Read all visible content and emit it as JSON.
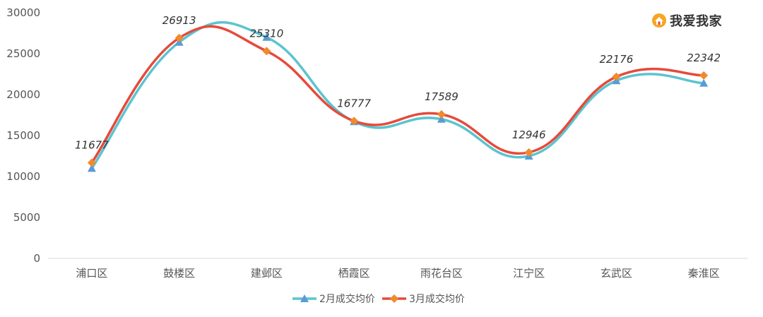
{
  "brand": {
    "name": "我爱我家"
  },
  "chart_data": {
    "type": "line",
    "categories": [
      "浦口区",
      "鼓楼区",
      "建邺区",
      "栖霞区",
      "雨花台区",
      "江宁区",
      "玄武区",
      "秦淮区"
    ],
    "ylim": [
      0,
      30000
    ],
    "yticks": [
      0,
      5000,
      10000,
      15000,
      20000,
      25000,
      30000
    ],
    "grid": false,
    "legend_position": "bottom",
    "series": [
      {
        "name": "2月成交均价",
        "color": "#5bc4cf",
        "marker_color": "#5a9bd5",
        "marker": "triangle",
        "values": [
          11000,
          26400,
          27000,
          16700,
          17000,
          12500,
          21700,
          21400
        ]
      },
      {
        "name": "3月成交均价",
        "color": "#e64a3b",
        "marker_color": "#f08a2c",
        "marker": "diamond",
        "values": [
          11677,
          26913,
          25310,
          16777,
          17589,
          12946,
          22176,
          22342
        ]
      }
    ],
    "data_labels": [
      "11677",
      "26913",
      "25310",
      "16777",
      "17589",
      "12946",
      "22176",
      "22342"
    ]
  }
}
